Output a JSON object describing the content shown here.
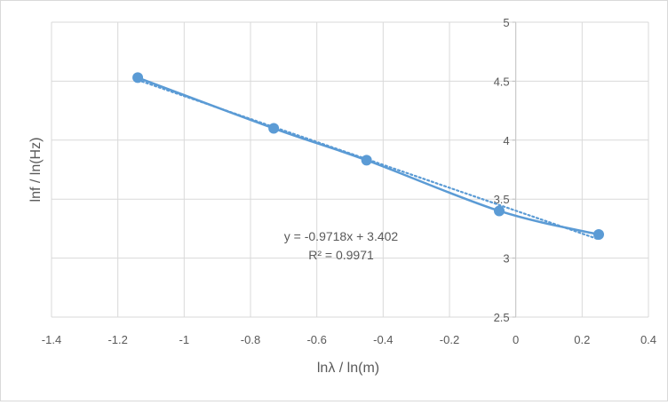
{
  "chart_data": {
    "type": "scatter",
    "title": "",
    "xlabel": "lnλ / ln(m)",
    "ylabel": "lnf / ln(Hz)",
    "xlim": [
      -1.4,
      0.4
    ],
    "ylim": [
      2.5,
      5
    ],
    "x_ticks": [
      "-1.4",
      "-1.2",
      "-1",
      "-0.8",
      "-0.6",
      "-0.4",
      "-0.2",
      "0",
      "0.2",
      "0.4"
    ],
    "y_ticks": [
      "2.5",
      "3",
      "3.5",
      "4",
      "4.5",
      "5"
    ],
    "grid": true,
    "series": [
      {
        "x": [
          -1.14,
          -0.73,
          -0.45,
          -0.05,
          0.25
        ],
        "y": [
          4.53,
          4.1,
          3.83,
          3.4,
          3.2
        ],
        "color": "#5b9bd5",
        "line": "smooth"
      }
    ],
    "trendline": {
      "type": "linear",
      "slope": -0.9718,
      "intercept": 3.402,
      "style": "dotted",
      "equation": "y = -0.9718x + 3.402",
      "r2": "R² = 0.9971"
    }
  }
}
